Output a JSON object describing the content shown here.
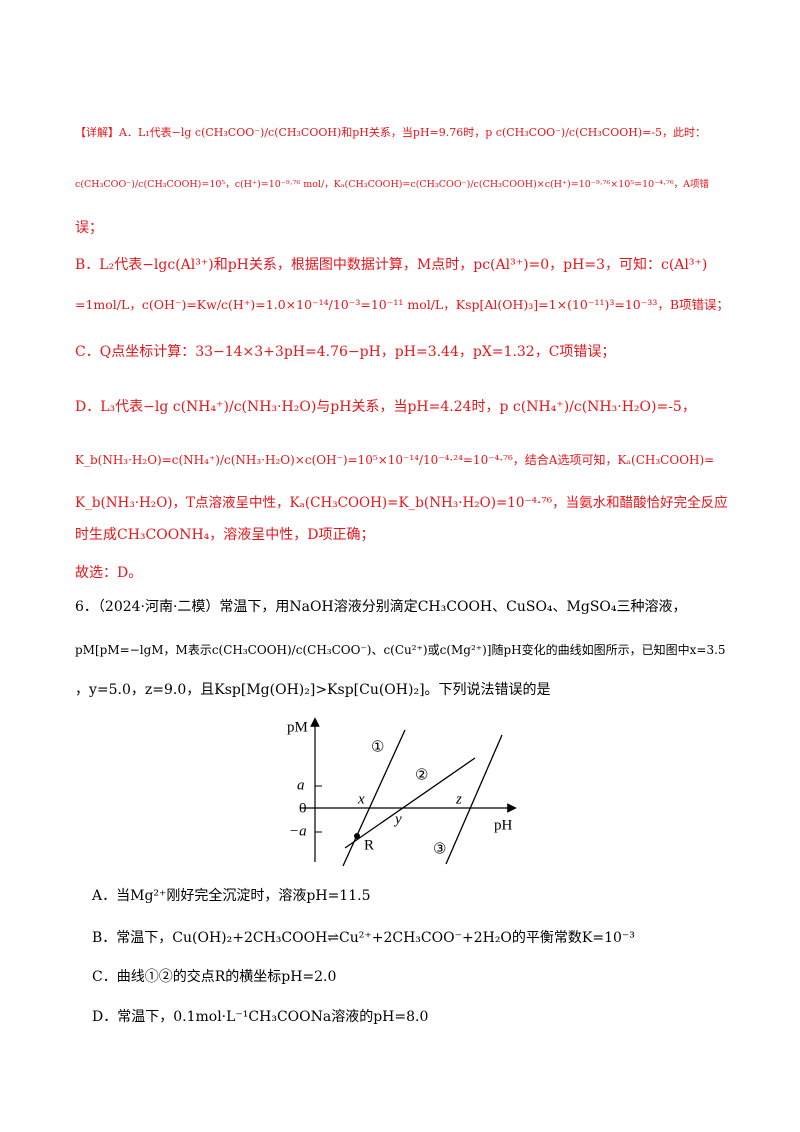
{
  "explanation": {
    "lines": [
      "【详解】A．L₁代表−lg c(CH₃COO⁻)/c(CH₃COOH)和pH关系，当pH=9.76时，p c(CH₃COO⁻)/c(CH₃COOH)=-5，此时：",
      "c(CH₃COO⁻)/c(CH₃COOH)=10⁵，c(H⁺)=10⁻⁹·⁷⁶ mol/，Kₐ(CH₃COOH)=c(CH₃COO⁻)/c(CH₃COOH)×c(H⁺)=10⁻⁹·⁷⁶×10⁵=10⁻⁴·⁷⁶，A项错",
      "误；",
      "B．L₂代表−lgc(Al³⁺)和pH关系，根据图中数据计算，M点时，pc(Al³⁺)=0，pH=3，可知：c(Al³⁺)",
      "=1mol/L，c(OH⁻)=Kw/c(H⁺)=1.0×10⁻¹⁴/10⁻³=10⁻¹¹ mol/L，Ksp[Al(OH)₃]=1×(10⁻¹¹)³=10⁻³³，B项错误；",
      "C．Q点坐标计算：33−14×3+3pH=4.76−pH，pH=3.44，pX=1.32，C项错误；",
      "D．L₃代表−lg c(NH₄⁺)/c(NH₃·H₂O)与pH关系，当pH=4.24时，p c(NH₄⁺)/c(NH₃·H₂O)=-5，",
      "K_b(NH₃·H₂O)=c(NH₄⁺)/c(NH₃·H₂O)×c(OH⁻)=10⁵×10⁻¹⁴/10⁻⁴·²⁴=10⁻⁴·⁷⁶，结合A选项可知，Kₐ(CH₃COOH)=",
      "K_b(NH₃·H₂O)，T点溶液呈中性，Kₐ(CH₃COOH)=K_b(NH₃·H₂O)=10⁻⁴·⁷⁶，当氨水和醋酸恰好完全反应",
      "时生成CH₃COONH₄，溶液呈中性，D项正确；",
      "故选：D。"
    ]
  },
  "question": {
    "lines": [
      "6．（2024·河南·二模）常温下，用NaOH溶液分别滴定CH₃COOH、CuSO₄、MgSO₄三种溶液，",
      "pM[pM=−lgM，M表示c(CH₃COOH)/c(CH₃COO⁻)、c(Cu²⁺)或c(Mg²⁺)]随pH变化的曲线如图所示，已知图中x=3.5",
      "，y=5.0，z=9.0，且Ksp[Mg(OH)₂]>Ksp[Cu(OH)₂]。下列说法错误的是"
    ],
    "figure": {
      "y_label": "pM",
      "x_label": "pH",
      "tick_a": "a",
      "tick_0": "0",
      "tick_neg_a": "−a",
      "point_x": "x",
      "point_y": "y",
      "point_z": "z",
      "point_r": "R",
      "curve_1": "①",
      "curve_2": "②",
      "curve_3": "③"
    },
    "options": [
      "A．当Mg²⁺刚好完全沉淀时，溶液pH=11.5",
      "B．常温下，Cu(OH)₂+2CH₃COOH⇌Cu²⁺+2CH₃COO⁻+2H₂O的平衡常数K=10⁻³",
      "C．曲线①②的交点R的横坐标pH=2.0",
      "D．常温下，0.1mol·L⁻¹CH₃COONa溶液的pH=8.0"
    ]
  }
}
